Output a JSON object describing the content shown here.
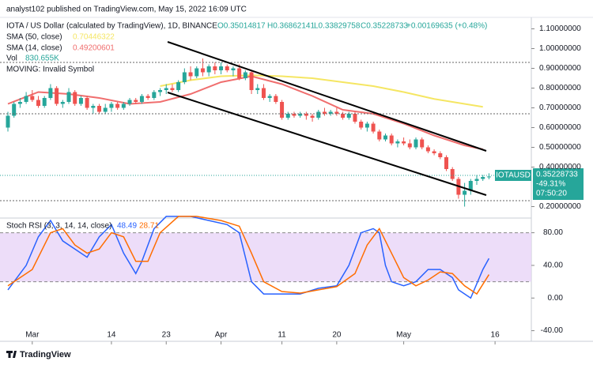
{
  "header": "analyst102 published on TradingView.com, May 15, 2022 16:09 UTC",
  "footer": "TradingView",
  "chart_data": {
    "type": "candlestick",
    "title": "IOTA / US Dollar (calculated by TradingView), 1D, BINANCE",
    "ohlc_text": [
      "O0.35014817",
      "H0.36862141",
      "L0.33829758",
      "C0.35228733",
      "+0.00169635 (+0.48%)"
    ],
    "up_color": "#26a69a",
    "down_color": "#ef5350",
    "xlim": [
      0,
      84.4
    ],
    "xticks": [
      {
        "value": 4,
        "label": "Mar"
      },
      {
        "value": 17,
        "label": "14"
      },
      {
        "value": 26,
        "label": "23"
      },
      {
        "value": 35,
        "label": "Apr"
      },
      {
        "value": 45,
        "label": "11"
      },
      {
        "value": 54,
        "label": "20"
      },
      {
        "value": 65,
        "label": "May"
      },
      {
        "value": 80,
        "label": "16"
      }
    ],
    "ylim": [
      0.142,
      1.154
    ],
    "yticks": [
      {
        "value": 1.1,
        "label": "1.10000000"
      },
      {
        "value": 1.0,
        "label": "1.00000000"
      },
      {
        "value": 0.9,
        "label": "0.90000000"
      },
      {
        "value": 0.8,
        "label": "0.80000000"
      },
      {
        "value": 0.7,
        "label": "0.70000000"
      },
      {
        "value": 0.6,
        "label": "0.60000000"
      },
      {
        "value": 0.5,
        "label": "0.50000000"
      },
      {
        "value": 0.4,
        "label": "0.40000000"
      },
      {
        "value": 0.2,
        "label": "0.20000000"
      }
    ],
    "ohlc": [
      [
        0.6,
        0.68,
        0.58,
        0.66
      ],
      [
        0.66,
        0.73,
        0.65,
        0.72
      ],
      [
        0.72,
        0.75,
        0.7,
        0.73
      ],
      [
        0.73,
        0.78,
        0.72,
        0.76
      ],
      [
        0.76,
        0.79,
        0.73,
        0.74
      ],
      [
        0.74,
        0.76,
        0.7,
        0.71
      ],
      [
        0.71,
        0.76,
        0.7,
        0.75
      ],
      [
        0.75,
        0.82,
        0.74,
        0.8
      ],
      [
        0.8,
        0.81,
        0.71,
        0.72
      ],
      [
        0.72,
        0.74,
        0.7,
        0.73
      ],
      [
        0.73,
        0.8,
        0.72,
        0.78
      ],
      [
        0.78,
        0.79,
        0.71,
        0.72
      ],
      [
        0.72,
        0.76,
        0.71,
        0.75
      ],
      [
        0.75,
        0.76,
        0.69,
        0.7
      ],
      [
        0.7,
        0.72,
        0.67,
        0.71
      ],
      [
        0.71,
        0.72,
        0.67,
        0.68
      ],
      [
        0.68,
        0.72,
        0.67,
        0.7
      ],
      [
        0.7,
        0.73,
        0.68,
        0.72
      ],
      [
        0.72,
        0.73,
        0.69,
        0.7
      ],
      [
        0.7,
        0.73,
        0.69,
        0.72
      ],
      [
        0.72,
        0.75,
        0.71,
        0.74
      ],
      [
        0.74,
        0.75,
        0.72,
        0.73
      ],
      [
        0.73,
        0.77,
        0.72,
        0.76
      ],
      [
        0.76,
        0.77,
        0.74,
        0.75
      ],
      [
        0.75,
        0.79,
        0.74,
        0.78
      ],
      [
        0.78,
        0.8,
        0.76,
        0.79
      ],
      [
        0.79,
        0.82,
        0.77,
        0.8
      ],
      [
        0.8,
        0.82,
        0.78,
        0.79
      ],
      [
        0.79,
        0.84,
        0.78,
        0.83
      ],
      [
        0.83,
        0.9,
        0.82,
        0.88
      ],
      [
        0.88,
        0.91,
        0.84,
        0.86
      ],
      [
        0.86,
        0.91,
        0.85,
        0.9
      ],
      [
        0.9,
        0.95,
        0.86,
        0.88
      ],
      [
        0.88,
        0.92,
        0.86,
        0.91
      ],
      [
        0.91,
        0.93,
        0.87,
        0.89
      ],
      [
        0.89,
        0.93,
        0.87,
        0.91
      ],
      [
        0.91,
        0.92,
        0.88,
        0.89
      ],
      [
        0.89,
        0.91,
        0.86,
        0.9
      ],
      [
        0.9,
        0.92,
        0.84,
        0.85
      ],
      [
        0.85,
        0.89,
        0.84,
        0.88
      ],
      [
        0.88,
        0.89,
        0.77,
        0.79
      ],
      [
        0.79,
        0.82,
        0.77,
        0.8
      ],
      [
        0.8,
        0.82,
        0.74,
        0.75
      ],
      [
        0.75,
        0.77,
        0.73,
        0.76
      ],
      [
        0.76,
        0.77,
        0.72,
        0.73
      ],
      [
        0.73,
        0.74,
        0.64,
        0.65
      ],
      [
        0.65,
        0.68,
        0.64,
        0.67
      ],
      [
        0.67,
        0.68,
        0.65,
        0.66
      ],
      [
        0.66,
        0.68,
        0.65,
        0.67
      ],
      [
        0.67,
        0.68,
        0.64,
        0.66
      ],
      [
        0.66,
        0.67,
        0.63,
        0.65
      ],
      [
        0.65,
        0.69,
        0.64,
        0.68
      ],
      [
        0.68,
        0.7,
        0.66,
        0.67
      ],
      [
        0.67,
        0.69,
        0.66,
        0.68
      ],
      [
        0.68,
        0.7,
        0.66,
        0.67
      ],
      [
        0.67,
        0.68,
        0.64,
        0.65
      ],
      [
        0.65,
        0.68,
        0.64,
        0.67
      ],
      [
        0.67,
        0.68,
        0.62,
        0.63
      ],
      [
        0.63,
        0.64,
        0.59,
        0.6
      ],
      [
        0.6,
        0.63,
        0.58,
        0.62
      ],
      [
        0.62,
        0.63,
        0.57,
        0.58
      ],
      [
        0.58,
        0.59,
        0.53,
        0.54
      ],
      [
        0.54,
        0.57,
        0.53,
        0.56
      ],
      [
        0.56,
        0.57,
        0.51,
        0.52
      ],
      [
        0.52,
        0.54,
        0.5,
        0.53
      ],
      [
        0.53,
        0.55,
        0.51,
        0.52
      ],
      [
        0.52,
        0.54,
        0.49,
        0.5
      ],
      [
        0.5,
        0.55,
        0.49,
        0.54
      ],
      [
        0.54,
        0.55,
        0.49,
        0.5
      ],
      [
        0.5,
        0.51,
        0.47,
        0.48
      ],
      [
        0.48,
        0.49,
        0.46,
        0.47
      ],
      [
        0.47,
        0.48,
        0.44,
        0.45
      ],
      [
        0.45,
        0.46,
        0.38,
        0.39
      ],
      [
        0.39,
        0.4,
        0.33,
        0.34
      ],
      [
        0.34,
        0.35,
        0.24,
        0.26
      ],
      [
        0.26,
        0.32,
        0.2,
        0.28
      ],
      [
        0.28,
        0.34,
        0.26,
        0.33
      ],
      [
        0.33,
        0.36,
        0.31,
        0.34
      ],
      [
        0.34,
        0.36,
        0.33,
        0.35
      ],
      [
        0.35014817,
        0.36862141,
        0.33829758,
        0.35228733
      ]
    ],
    "overlays": [
      {
        "name": "SMA (50, close)",
        "value_label": "0.70446322",
        "color": "#f5e663",
        "x": [
          25,
          30,
          35,
          40,
          45,
          50,
          55,
          60,
          65,
          70,
          78
        ],
        "values": [
          0.81,
          0.84,
          0.86,
          0.865,
          0.86,
          0.85,
          0.83,
          0.81,
          0.78,
          0.745,
          0.705
        ]
      },
      {
        "name": "SMA (14, close)",
        "value_label": "0.49200601",
        "color": "#f06e6e",
        "x": [
          0,
          5,
          10,
          15,
          20,
          25,
          30,
          35,
          40,
          45,
          50,
          55,
          60,
          65,
          70,
          75,
          78
        ],
        "values": [
          0.72,
          0.78,
          0.77,
          0.75,
          0.72,
          0.73,
          0.77,
          0.83,
          0.86,
          0.82,
          0.76,
          0.69,
          0.67,
          0.62,
          0.56,
          0.51,
          0.49
        ]
      }
    ],
    "volume_label": {
      "name": "Vol",
      "value": "830.655K"
    },
    "moving_label": "MOVING: Invalid Symbol",
    "price_tag": {
      "symbol": "IOTAUSD",
      "value": "0.35228733",
      "change": "-49.31%",
      "countdown": "07:50:20",
      "color": "#26a69a"
    },
    "stoch": {
      "name": "Stoch RSI (3, 3, 14, 14, close)",
      "ylim": [
        -53,
        98
      ],
      "yticks": [
        {
          "value": 80,
          "label": "80.00"
        },
        {
          "value": 40,
          "label": "40.00"
        },
        {
          "value": 0,
          "label": "0.00"
        },
        {
          "value": -40,
          "label": "-40.00"
        }
      ],
      "band": [
        20,
        80
      ],
      "band_color": "#e9d5f7",
      "series": [
        {
          "value_label": "48.49",
          "color": "#2962ff",
          "x": [
            0,
            3,
            5,
            7,
            9,
            11,
            13,
            15,
            17,
            19,
            21,
            22,
            24,
            26,
            30,
            33,
            36,
            38,
            40,
            42,
            45,
            48,
            51,
            54,
            56,
            58,
            60,
            61,
            62,
            63,
            65,
            67,
            69,
            71,
            73,
            74,
            76,
            78,
            79
          ],
          "values": [
            10,
            40,
            75,
            95,
            70,
            60,
            50,
            75,
            90,
            55,
            30,
            45,
            85,
            100,
            100,
            95,
            90,
            80,
            20,
            5,
            5,
            5,
            12,
            15,
            40,
            80,
            85,
            80,
            40,
            20,
            15,
            20,
            35,
            35,
            25,
            10,
            0,
            35,
            48.49
          ]
        },
        {
          "value_label": "28.71",
          "color": "#ff6d00",
          "x": [
            0,
            4,
            7,
            9,
            11,
            13,
            15,
            17,
            19,
            21,
            23,
            25,
            28,
            31,
            35,
            38,
            40,
            42,
            45,
            48,
            51,
            54,
            57,
            59,
            61,
            63,
            65,
            67,
            69,
            71,
            73,
            75,
            77,
            79
          ],
          "values": [
            15,
            35,
            80,
            85,
            65,
            55,
            60,
            80,
            75,
            45,
            45,
            80,
            100,
            100,
            95,
            88,
            55,
            20,
            8,
            6,
            10,
            14,
            30,
            65,
            85,
            55,
            25,
            15,
            22,
            32,
            30,
            15,
            5,
            28.71
          ]
        }
      ]
    }
  }
}
